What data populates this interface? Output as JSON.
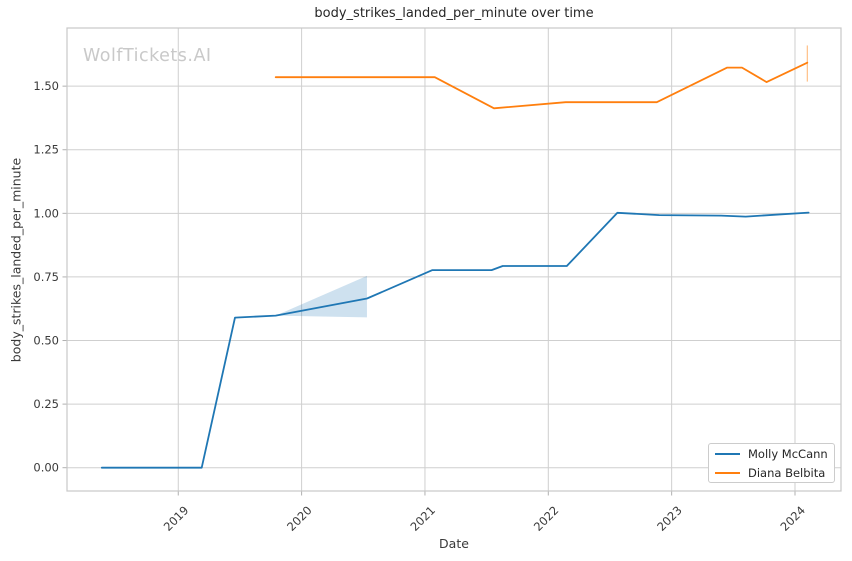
{
  "figure": {
    "title": "body_strikes_landed_per_minute over time",
    "watermark": "WolfTickets.AI",
    "xlabel": "Date",
    "ylabel": "body_strikes_landed_per_minute"
  },
  "legend": {
    "position": "lower right",
    "items": [
      {
        "label": "Molly McCann",
        "color": "#1f77b4"
      },
      {
        "label": "Diana Belbita",
        "color": "#ff7f0e"
      }
    ]
  },
  "style": {
    "background": "#ffffff",
    "grid_color": "#cfcfcf",
    "spine_color": "#c8c8c8",
    "tick_mark_color": "#b0b0b0",
    "text_color": "#3a3a3a",
    "watermark_color": "#c9c9c9"
  },
  "chart_data": {
    "type": "line",
    "title": "body_strikes_landed_per_minute over time",
    "xlabel": "Date",
    "ylabel": "body_strikes_landed_per_minute",
    "grid": true,
    "legend_position": "lower right",
    "xlim": [
      2018.098,
      2024.373
    ],
    "ylim": [
      -0.0916,
      1.7286
    ],
    "x_ticks": [
      {
        "value": 2019,
        "label": "2019"
      },
      {
        "value": 2020,
        "label": "2020"
      },
      {
        "value": 2021,
        "label": "2021"
      },
      {
        "value": 2022,
        "label": "2022"
      },
      {
        "value": 2023,
        "label": "2023"
      },
      {
        "value": 2024,
        "label": "2024"
      }
    ],
    "y_ticks": [
      {
        "value": 0.0,
        "label": "0.00"
      },
      {
        "value": 0.25,
        "label": "0.25"
      },
      {
        "value": 0.5,
        "label": "0.50"
      },
      {
        "value": 0.75,
        "label": "0.75"
      },
      {
        "value": 1.0,
        "label": "1.00"
      },
      {
        "value": 1.25,
        "label": "1.25"
      },
      {
        "value": 1.5,
        "label": "1.50"
      }
    ],
    "series": [
      {
        "name": "Molly McCann",
        "color": "#1f77b4",
        "line_width": 1.8,
        "points": [
          [
            2018.38,
            0.0
          ],
          [
            2019.19,
            0.0
          ],
          [
            2019.46,
            0.59
          ],
          [
            2019.79,
            0.598
          ],
          [
            2020.53,
            0.665
          ],
          [
            2021.06,
            0.777
          ],
          [
            2021.54,
            0.777
          ],
          [
            2021.63,
            0.793
          ],
          [
            2022.15,
            0.793
          ],
          [
            2022.56,
            1.002
          ],
          [
            2022.9,
            0.993
          ],
          [
            2023.4,
            0.991
          ],
          [
            2023.6,
            0.987
          ],
          [
            2024.11,
            1.003
          ]
        ]
      },
      {
        "name": "Diana Belbita",
        "color": "#ff7f0e",
        "line_width": 1.8,
        "points": [
          [
            2019.79,
            1.535
          ],
          [
            2021.08,
            1.535
          ],
          [
            2021.56,
            1.413
          ],
          [
            2022.14,
            1.437
          ],
          [
            2022.88,
            1.437
          ],
          [
            2023.45,
            1.573
          ],
          [
            2023.57,
            1.573
          ],
          [
            2023.77,
            1.516
          ],
          [
            2024.1,
            1.592
          ]
        ],
        "error_bar": {
          "x": 2024.1,
          "y_min": 1.518,
          "y_max": 1.66,
          "color": "#ffbf86",
          "width": 1.2
        }
      }
    ],
    "confidence_band": {
      "series": "Molly McCann",
      "color": "rgba(31,119,180,0.22)",
      "polygon": [
        [
          2019.79,
          0.598
        ],
        [
          2020.53,
          0.754
        ],
        [
          2020.53,
          0.591
        ]
      ]
    }
  }
}
